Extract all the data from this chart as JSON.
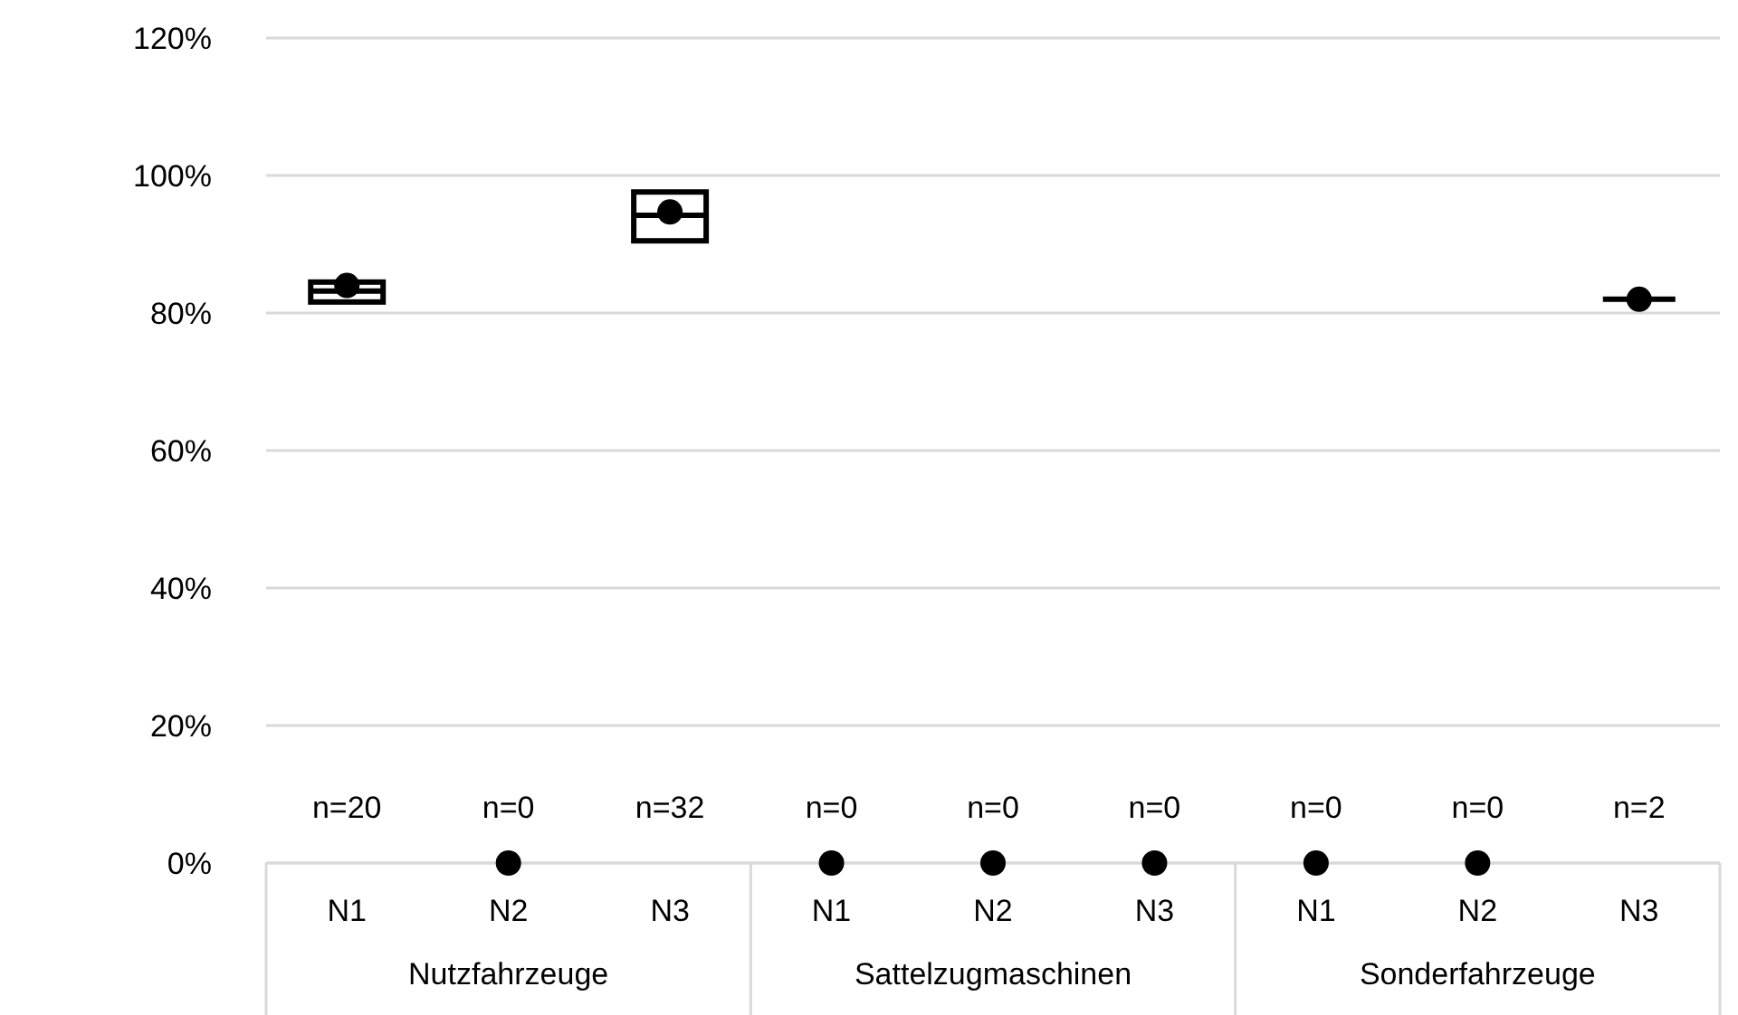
{
  "chart_data": {
    "type": "box",
    "categories": [
      "N1",
      "N2",
      "N3",
      "N1",
      "N2",
      "N3",
      "N1",
      "N2",
      "N3"
    ],
    "boxes": [
      {
        "low": 81.6,
        "q1": 81.6,
        "median": 83.2,
        "q3": 84.5,
        "high": 84.5
      },
      null,
      {
        "low": 90.5,
        "q1": 90.5,
        "median": 94.2,
        "q3": 97.6,
        "high": 97.6
      },
      null,
      null,
      null,
      null,
      null,
      {
        "low": 82,
        "q1": 82,
        "median": 82,
        "q3": 82,
        "high": 82
      }
    ],
    "series": [
      {
        "type": "scatter",
        "color": "#000000",
        "values": [
          84,
          0,
          94.7,
          0,
          0,
          0,
          0,
          0,
          82
        ]
      }
    ],
    "color": "#000000",
    "marker": "circle",
    "ylim": [
      0,
      120
    ],
    "yticks": [
      {
        "value": 0,
        "label": "0%"
      },
      {
        "value": 20,
        "label": "20%"
      },
      {
        "value": 40,
        "label": "40%"
      },
      {
        "value": 60,
        "label": "60%"
      },
      {
        "value": 80,
        "label": "80%"
      },
      {
        "value": 100,
        "label": "100%"
      },
      {
        "value": 120,
        "label": "120%"
      }
    ],
    "grid": "y",
    "annotations": [
      "n=20",
      "n=0",
      "n=32",
      "n=0",
      "n=0",
      "n=0",
      "n=0",
      "n=0",
      "n=2",
      "Nutzfahrzeuge",
      "Sattelzugmaschinen",
      "Sonderfahrzeuge"
    ]
  }
}
